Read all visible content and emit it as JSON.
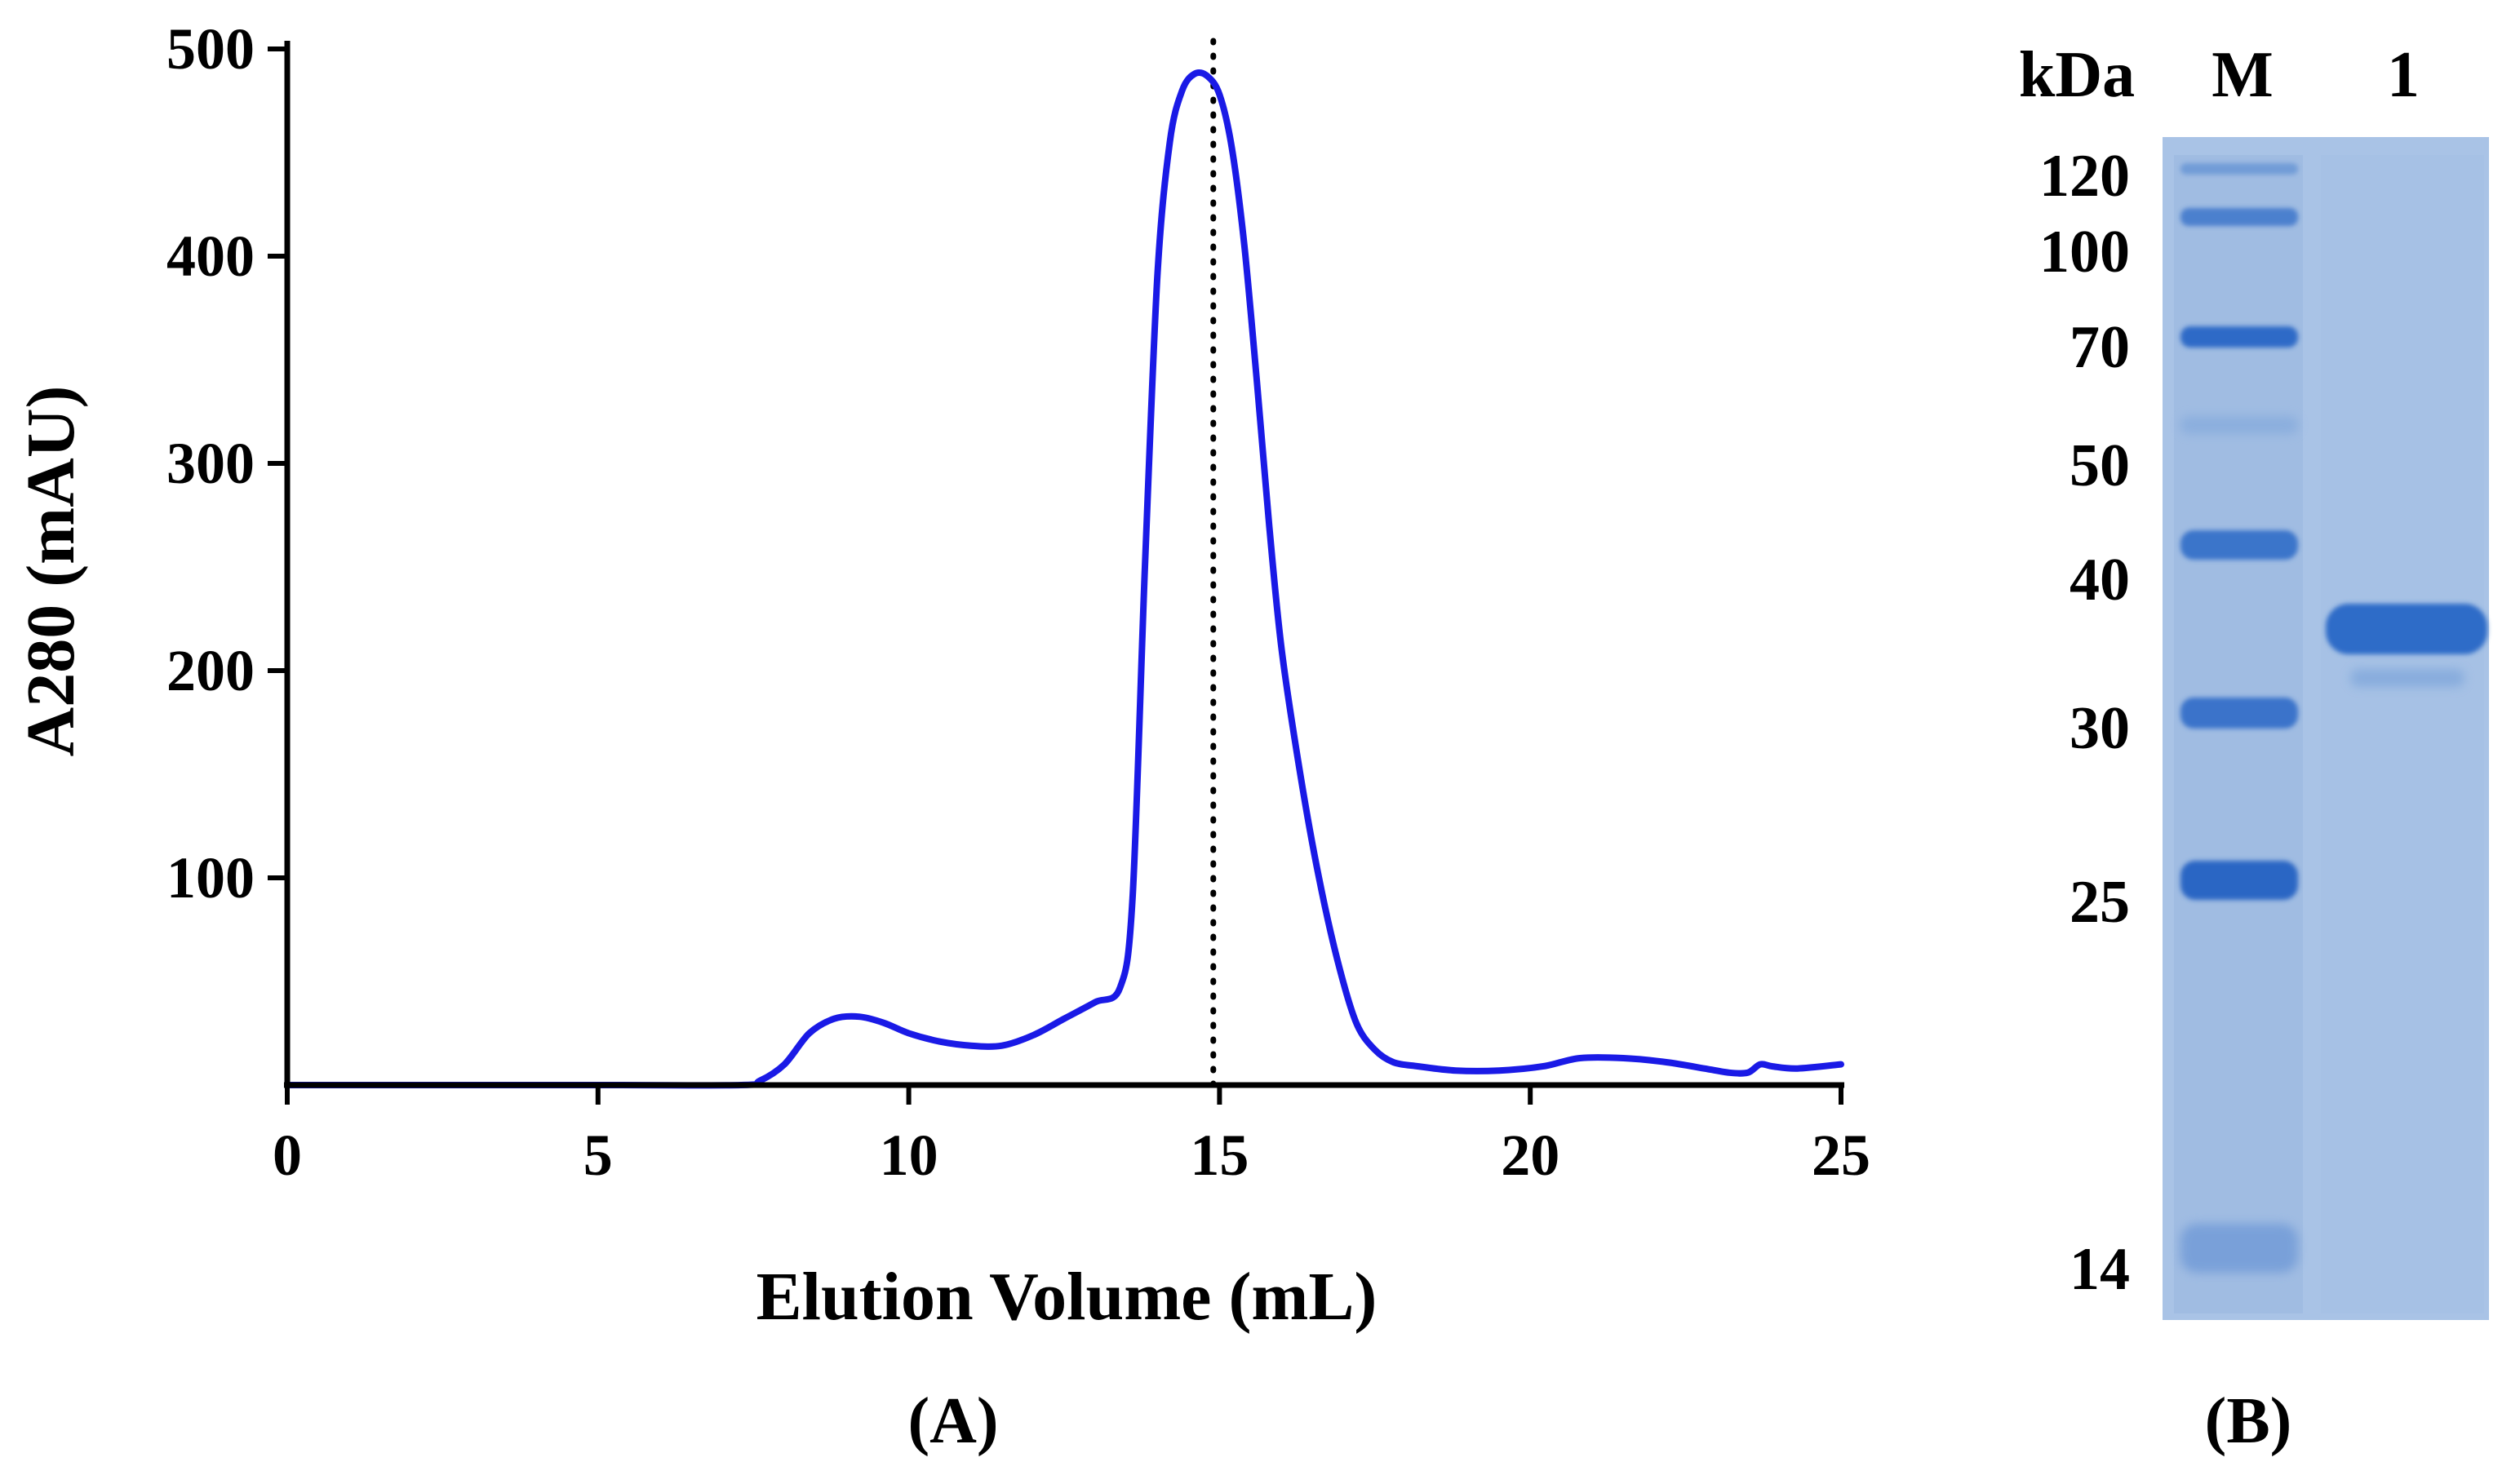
{
  "colors": {
    "trace": "#1a1ae6",
    "axis": "#000000",
    "gel_background": "#a9c3e6",
    "gel_band": "#2e6cc8"
  },
  "panels": {
    "a_label": "(A)",
    "b_label": "(B)"
  },
  "chart_data": [
    {
      "type": "line",
      "xlabel": "Elution Volume (mL)",
      "ylabel": "A280 (mAU)",
      "xlim": [
        0,
        25
      ],
      "ylim": [
        0,
        500
      ],
      "xticks": [
        0,
        5,
        10,
        15,
        20,
        25
      ],
      "yticks": [
        100,
        200,
        300,
        400,
        500
      ],
      "peak_marker": {
        "x": 14.9,
        "style": "dotted"
      },
      "grid": false,
      "series": [
        {
          "x": [
            0,
            5,
            7.3,
            7.6,
            8.0,
            8.4,
            8.8,
            9.2,
            9.6,
            10.0,
            10.5,
            11.0,
            11.5,
            12.0,
            12.5,
            13.0,
            13.4,
            13.6,
            13.8,
            14.0,
            14.2,
            14.4,
            14.6,
            14.8,
            15.0,
            15.2,
            15.4,
            15.6,
            15.8,
            16.0,
            16.3,
            16.6,
            16.9,
            17.2,
            17.5,
            17.8,
            18.2,
            18.8,
            19.5,
            20.2,
            20.8,
            21.5,
            22.2,
            22.8,
            23.2,
            23.5,
            23.7,
            23.9,
            24.3,
            25.0
          ],
          "y": [
            0,
            0,
            0,
            2,
            10,
            25,
            32,
            33,
            30,
            25,
            21,
            19,
            19,
            24,
            32,
            40,
            47,
            90,
            250,
            390,
            455,
            480,
            488,
            487,
            478,
            452,
            405,
            340,
            270,
            210,
            150,
            100,
            60,
            30,
            17,
            11,
            9,
            7,
            7,
            9,
            13,
            13,
            11,
            8,
            6,
            6,
            10,
            9,
            8,
            10
          ]
        }
      ]
    },
    {
      "type": "table",
      "header": {
        "unit": "kDa",
        "lanes": [
          "M",
          "1"
        ]
      },
      "marker_kda": [
        "120",
        "100",
        "70",
        "50",
        "40",
        "30",
        "25",
        "14"
      ]
    }
  ]
}
